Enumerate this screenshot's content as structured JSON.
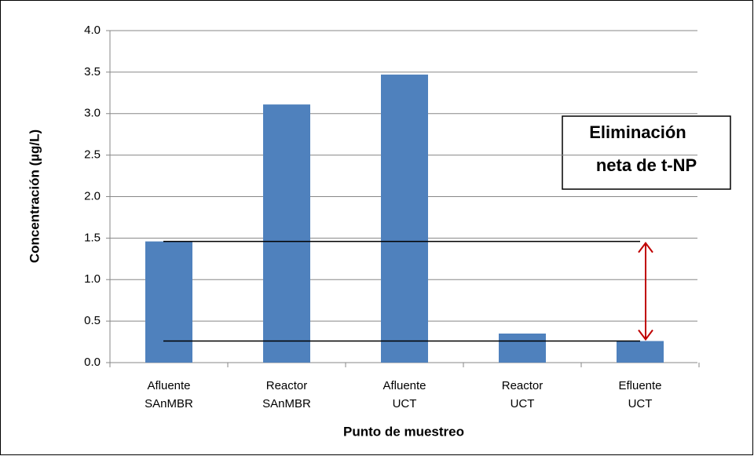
{
  "chart_data": {
    "type": "bar",
    "y_label": "Concentración (µg/L)",
    "x_label": "Punto de muestreo",
    "categories": [
      [
        "Afluente",
        "SAnMBR"
      ],
      [
        "Reactor",
        "SAnMBR"
      ],
      [
        "Afluente",
        "UCT"
      ],
      [
        "Reactor",
        "UCT"
      ],
      [
        "Efluente",
        "UCT"
      ]
    ],
    "values": [
      1.46,
      3.11,
      3.47,
      0.35,
      0.26
    ],
    "color": "#4f81bd",
    "ylim": [
      0,
      4
    ],
    "yticks": [
      {
        "value": 0,
        "label": "0.0"
      },
      0.5,
      {
        "value": 1,
        "label": "1.0"
      },
      1.5,
      {
        "value": 2,
        "label": "2.0"
      },
      2.5,
      {
        "value": 3,
        "label": "3.0"
      },
      3.5,
      {
        "value": 4,
        "label": "4.0"
      }
    ],
    "grid": true,
    "annotation": [
      "Eliminación",
      "neta de t-NP"
    ],
    "annotation_color": "#c00000"
  }
}
